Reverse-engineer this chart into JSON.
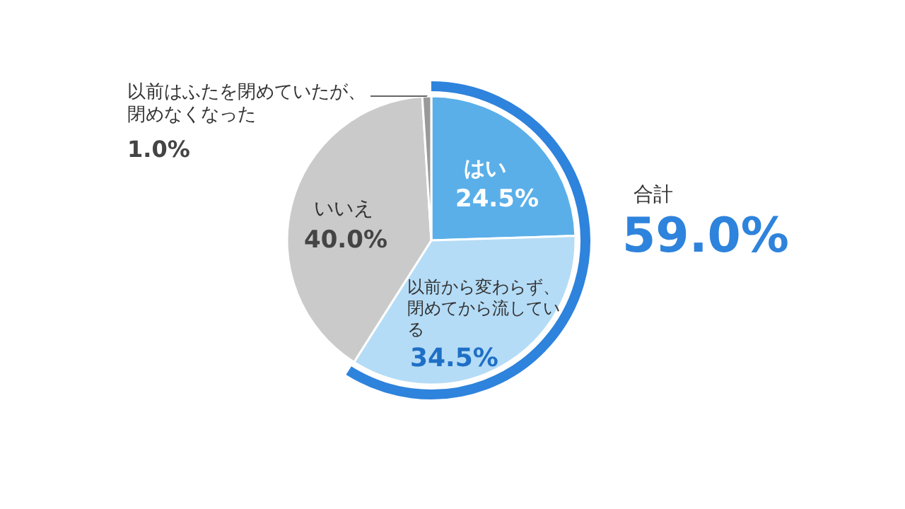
{
  "chart_data": {
    "type": "pie",
    "categories": [
      "はい",
      "以前から変わらず、閉めてから流している",
      "いいえ",
      "以前はふたを閉めていたが、閉めなくなった"
    ],
    "values": [
      24.5,
      34.5,
      40.0,
      1.0
    ],
    "colors": [
      "#5aafe9",
      "#b5dcf6",
      "#cacaca",
      "#9a9a9a"
    ],
    "value_labels": [
      "24.5%",
      "34.5%",
      "40.0%",
      "1.0%"
    ],
    "annotations": [
      "合計",
      "59.0%"
    ]
  }
}
